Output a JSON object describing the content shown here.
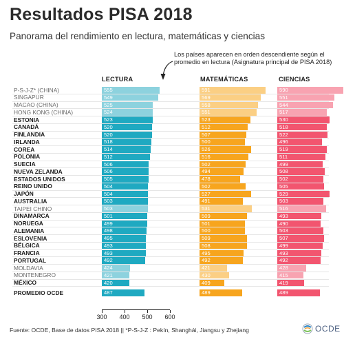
{
  "header": {
    "title": "Resultados PISA 2018",
    "subtitle": "Panorama del rendimiento en lectura, matemáticas y ciencias",
    "note": "Los países aparecen en orden descendiente según el promedio en lectura (Asignatura principal de PISA 2018)"
  },
  "columns": {
    "lectura": "LECTURA",
    "matematicas": "MATEMÁTICAS",
    "ciencias": "CIENCIAS"
  },
  "colors": {
    "lectura": "#1fa9c1",
    "lectura_light": "#8dd2de",
    "matematicas": "#f7a51e",
    "matematicas_light": "#fbcf84",
    "ciencias": "#f2556f",
    "ciencias_light": "#f8a3b1"
  },
  "chart_data": {
    "type": "bar",
    "title": "Resultados PISA 2018",
    "axis_ticks": [
      "300",
      "400",
      "500",
      "600"
    ],
    "xlim": [
      300,
      600
    ],
    "categories": [
      "P-S-J-Z* (CHINA)",
      "SINGAPUR",
      "MACAO (CHINA)",
      "HONG KONG (CHINA)",
      "ESTONIA",
      "CANADÁ",
      "FINLANDIA",
      "IRLANDA",
      "COREA",
      "POLONIA",
      "SUECIA",
      "NUEVA ZELANDA",
      "ESTADOS UNIDOS",
      "REINO UNIDO",
      "JAPÓN",
      "AUSTRALIA",
      "TAIPEI CHINO",
      "DINAMARCA",
      "NORUEGA",
      "ALEMANIA",
      "ESLOVENIA",
      "BÉLGICA",
      "FRANCIA",
      "PORTUGAL",
      "MOLDAVIA",
      "MONTENEGRO",
      "MÉXICO"
    ],
    "style": [
      "light",
      "light",
      "light",
      "light",
      "bold",
      "bold",
      "bold",
      "bold",
      "bold",
      "bold",
      "bold",
      "bold",
      "bold",
      "bold",
      "bold",
      "bold",
      "light",
      "bold",
      "bold",
      "bold",
      "bold",
      "bold",
      "bold",
      "bold",
      "light",
      "light",
      "bold"
    ],
    "series": [
      {
        "name": "LECTURA",
        "values": [
          555,
          549,
          525,
          524,
          523,
          520,
          520,
          518,
          514,
          512,
          506,
          506,
          505,
          504,
          504,
          503,
          503,
          501,
          499,
          498,
          495,
          493,
          493,
          492,
          424,
          421,
          420
        ]
      },
      {
        "name": "MATEMÁTICAS",
        "values": [
          591,
          569,
          558,
          551,
          523,
          512,
          507,
          500,
          526,
          516,
          502,
          494,
          478,
          502,
          527,
          491,
          531,
          509,
          501,
          500,
          509,
          508,
          495,
          492,
          421,
          430,
          409
        ]
      },
      {
        "name": "CIENCIAS",
        "values": [
          590,
          551,
          544,
          517,
          530,
          518,
          522,
          496,
          519,
          511,
          499,
          508,
          502,
          505,
          529,
          503,
          516,
          493,
          490,
          503,
          507,
          499,
          493,
          492,
          428,
          415,
          419
        ]
      }
    ],
    "average": {
      "label": "PROMEDIO OCDE",
      "values": [
        487,
        489,
        489
      ]
    }
  },
  "footer": {
    "source": "Fuente: OCDE, Base de datos PISA 2018  || *P-S-J-Z : Pekín, Shanghái, Jiangsu y Zhejiang",
    "logo": "OCDE"
  }
}
